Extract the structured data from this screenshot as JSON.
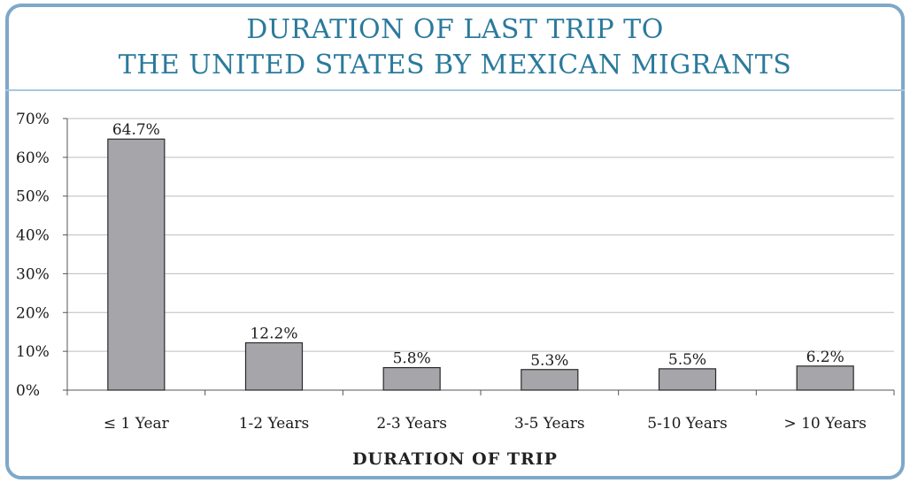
{
  "chart_data": {
    "type": "bar",
    "title_lines": [
      "DURATION OF LAST TRIP TO",
      "THE UNITED STATES BY MEXICAN MIGRANTS"
    ],
    "xlabel": "DURATION OF TRIP",
    "ylabel": "",
    "categories": [
      "≤ 1 Year",
      "1-2 Years",
      "2-3 Years",
      "3-5 Years",
      "5-10 Years",
      "> 10 Years"
    ],
    "values": [
      64.7,
      12.2,
      5.8,
      5.3,
      5.5,
      6.2
    ],
    "data_labels": [
      "64.7%",
      "12.2%",
      "5.8%",
      "5.3%",
      "5.5%",
      "6.2%"
    ],
    "ylim": [
      0,
      70
    ],
    "yticks": [
      0,
      10,
      20,
      30,
      40,
      50,
      60,
      70
    ],
    "ytick_labels": [
      "0%",
      "10%",
      "20%",
      "30%",
      "40%",
      "50%",
      "60%",
      "70%"
    ],
    "grid": true,
    "bar_color": "#a5a5aa",
    "border_color": "#7ea8c8",
    "title_color": "#2b7a9c"
  }
}
